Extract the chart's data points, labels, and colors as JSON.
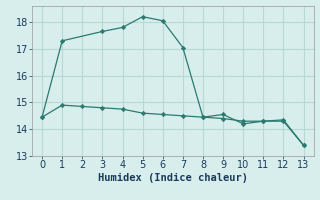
{
  "xlabel": "Humidex (Indice chaleur)",
  "ylabel": "",
  "background_color": "#d8eeed",
  "grid_color": "#b8d8d4",
  "line_color": "#2a7a70",
  "xlim": [
    -0.5,
    13.5
  ],
  "ylim": [
    13.0,
    18.6
  ],
  "yticks": [
    13,
    14,
    15,
    16,
    17,
    18
  ],
  "xticks": [
    0,
    1,
    2,
    3,
    4,
    5,
    6,
    7,
    8,
    9,
    10,
    11,
    12,
    13
  ],
  "line1_x": [
    0,
    1,
    2,
    3,
    4,
    5,
    6,
    7,
    8,
    9,
    10,
    11,
    12,
    13
  ],
  "line1_y": [
    14.45,
    14.9,
    14.85,
    14.8,
    14.75,
    14.6,
    14.55,
    14.5,
    14.45,
    14.4,
    14.3,
    14.3,
    14.3,
    13.4
  ],
  "line2_x": [
    0,
    1,
    3,
    4,
    5,
    6,
    7,
    8,
    9,
    10,
    11,
    12,
    13
  ],
  "line2_y": [
    14.45,
    17.3,
    17.65,
    17.8,
    18.2,
    18.05,
    17.05,
    14.45,
    14.55,
    14.2,
    14.3,
    14.35,
    13.4
  ],
  "xlabel_fontsize": 7.5,
  "tick_fontsize": 7.0
}
